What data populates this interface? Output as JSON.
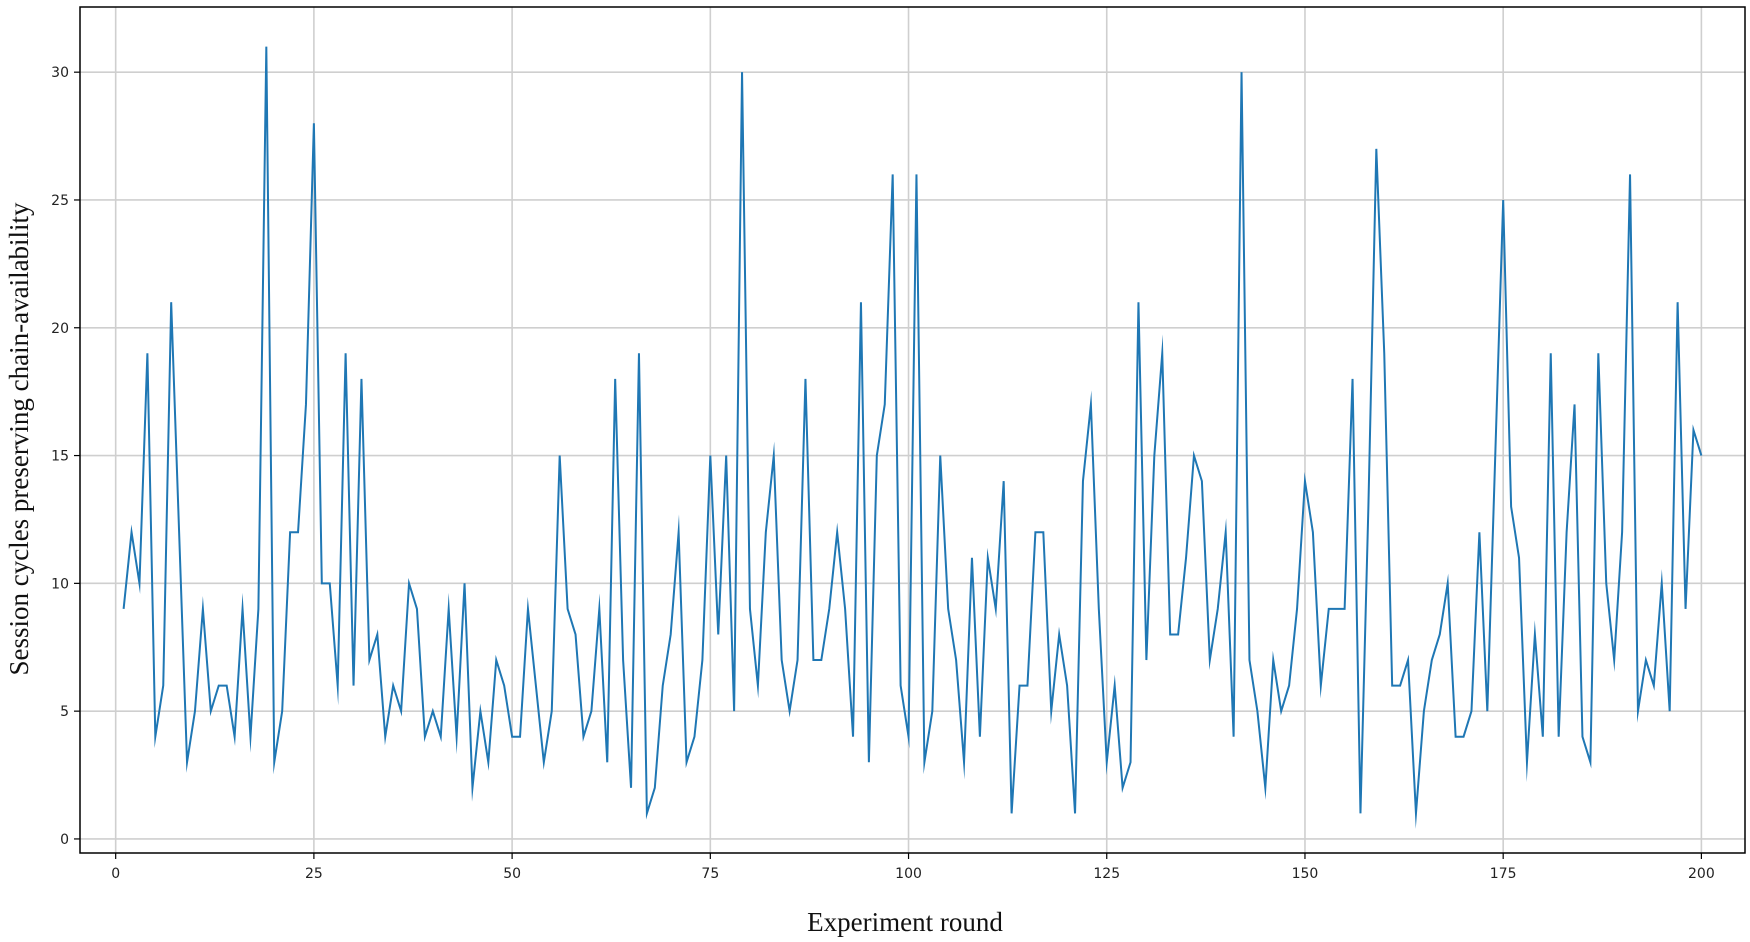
{
  "chart_data": {
    "type": "line",
    "title": "",
    "xlabel": "Experiment round",
    "ylabel": "Session cycles preserving chain-availability",
    "xlim": [
      -4.5,
      205.5
    ],
    "ylim": [
      -0.55,
      32.55
    ],
    "xticks": [
      0,
      25,
      50,
      75,
      100,
      125,
      150,
      175,
      200
    ],
    "yticks": [
      0,
      5,
      10,
      15,
      20,
      25,
      30
    ],
    "grid": true,
    "legend": "none",
    "line_color": "#1f77b4",
    "x": [
      1,
      2,
      3,
      4,
      5,
      6,
      7,
      8,
      9,
      10,
      11,
      12,
      13,
      14,
      15,
      16,
      17,
      18,
      19,
      20,
      21,
      22,
      23,
      24,
      25,
      26,
      27,
      28,
      29,
      30,
      31,
      32,
      33,
      34,
      35,
      36,
      37,
      38,
      39,
      40,
      41,
      42,
      43,
      44,
      45,
      46,
      47,
      48,
      49,
      50,
      51,
      52,
      53,
      54,
      55,
      56,
      57,
      58,
      59,
      60,
      61,
      62,
      63,
      64,
      65,
      66,
      67,
      68,
      69,
      70,
      71,
      72,
      73,
      74,
      75,
      76,
      77,
      78,
      79,
      80,
      81,
      82,
      83,
      84,
      85,
      86,
      87,
      88,
      89,
      90,
      91,
      92,
      93,
      94,
      95,
      96,
      97,
      98,
      99,
      100,
      101,
      102,
      103,
      104,
      105,
      106,
      107,
      108,
      109,
      110,
      111,
      112,
      113,
      114,
      115,
      116,
      117,
      118,
      119,
      120,
      121,
      122,
      123,
      124,
      125,
      126,
      127,
      128,
      129,
      130,
      131,
      132,
      133,
      134,
      135,
      136,
      137,
      138,
      139,
      140,
      141,
      142,
      143,
      144,
      145,
      146,
      147,
      148,
      149,
      150,
      151,
      152,
      153,
      154,
      155,
      156,
      157,
      158,
      159,
      160,
      161,
      162,
      163,
      164,
      165,
      166,
      167,
      168,
      169,
      170,
      171,
      172,
      173,
      174,
      175,
      176,
      177,
      178,
      179,
      180,
      181,
      182,
      183,
      184,
      185,
      186,
      187,
      188,
      189,
      190,
      191,
      192,
      193,
      194,
      195,
      196,
      197,
      198,
      199,
      200
    ],
    "series": [
      {
        "values": [
          9,
          12,
          10,
          19,
          4,
          6,
          21,
          12,
          3,
          5,
          9,
          5,
          6,
          6,
          4,
          9,
          4,
          9,
          31,
          3,
          5,
          12,
          12,
          17,
          28,
          10,
          10,
          6,
          19,
          6,
          18,
          7,
          8,
          4,
          6,
          5,
          10,
          9,
          4,
          5,
          4,
          9,
          4,
          10,
          2,
          5,
          3,
          7,
          6,
          4,
          4,
          9,
          6,
          3,
          5,
          15,
          9,
          8,
          4,
          5,
          9,
          3,
          18,
          7,
          2,
          19,
          1,
          2,
          6,
          8,
          12,
          3,
          4,
          7,
          15,
          8,
          15,
          5,
          30,
          9,
          6,
          12,
          15,
          7,
          5,
          7,
          18,
          7,
          7,
          9,
          12,
          9,
          4,
          21,
          3,
          15,
          17,
          26,
          6,
          4,
          26,
          3,
          5,
          15,
          9,
          7,
          3,
          11,
          4,
          11,
          9,
          14,
          1,
          6,
          6,
          12,
          12,
          5,
          8,
          6,
          1,
          14,
          17,
          9,
          3,
          6,
          2,
          3,
          21,
          7,
          15,
          19,
          8,
          8,
          11,
          15,
          14,
          7,
          9,
          12,
          4,
          30,
          7,
          5,
          2,
          7,
          5,
          6,
          9,
          14,
          12,
          6,
          9,
          9,
          9,
          18,
          1,
          13,
          27,
          19,
          6,
          6,
          7,
          1,
          5,
          7,
          8,
          10,
          4,
          4,
          5,
          12,
          5,
          15,
          25,
          13,
          11,
          3,
          8,
          4,
          19,
          4,
          12,
          17,
          4,
          3,
          19,
          10,
          7,
          12,
          26,
          5,
          7,
          6,
          10,
          5,
          21,
          9,
          16,
          15
        ]
      }
    ]
  }
}
